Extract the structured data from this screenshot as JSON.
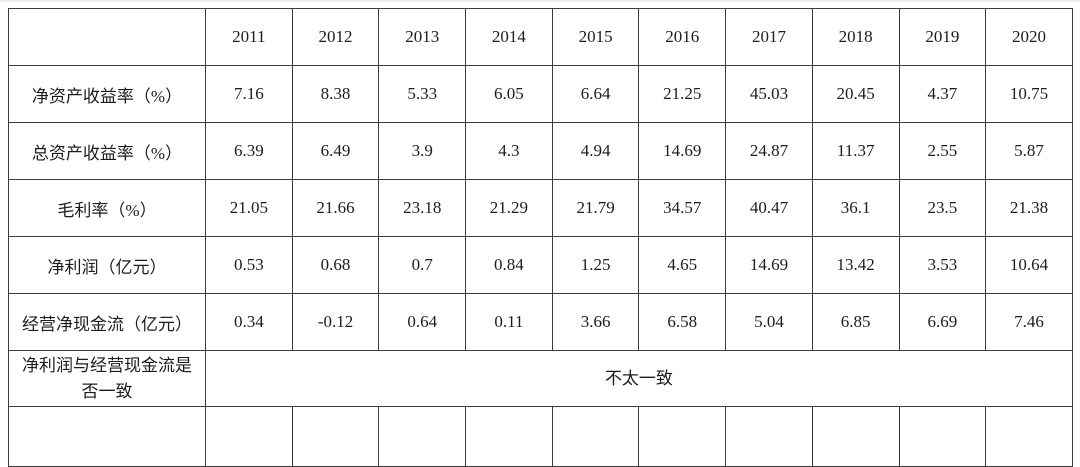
{
  "chart_data": {
    "type": "table",
    "title": "",
    "columns": [
      "",
      "2011",
      "2012",
      "2013",
      "2014",
      "2015",
      "2016",
      "2017",
      "2018",
      "2019",
      "2020"
    ],
    "rows": [
      {
        "label": "净资产收益率（%）",
        "values": [
          "7.16",
          "8.38",
          "5.33",
          "6.05",
          "6.64",
          "21.25",
          "45.03",
          "20.45",
          "4.37",
          "10.75"
        ]
      },
      {
        "label": "总资产收益率（%）",
        "values": [
          "6.39",
          "6.49",
          "3.9",
          "4.3",
          "4.94",
          "14.69",
          "24.87",
          "11.37",
          "2.55",
          "5.87"
        ]
      },
      {
        "label": "毛利率（%）",
        "values": [
          "21.05",
          "21.66",
          "23.18",
          "21.29",
          "21.79",
          "34.57",
          "40.47",
          "36.1",
          "23.5",
          "21.38"
        ]
      },
      {
        "label": "净利润（亿元）",
        "values": [
          "0.53",
          "0.68",
          "0.7",
          "0.84",
          "1.25",
          "4.65",
          "14.69",
          "13.42",
          "3.53",
          "10.64"
        ]
      },
      {
        "label": "经营净现金流（亿元）",
        "values": [
          "0.34",
          "-0.12",
          "0.64",
          "0.11",
          "3.66",
          "6.58",
          "5.04",
          "6.85",
          "6.69",
          "7.46"
        ]
      },
      {
        "label": "净利润与经营现金流是否一致",
        "merged_value": "不太一致"
      }
    ],
    "layout": {
      "grid": true,
      "border_color": "#3c3c3c",
      "text_color": "#1c1c1c",
      "background": "#ffffff"
    }
  }
}
